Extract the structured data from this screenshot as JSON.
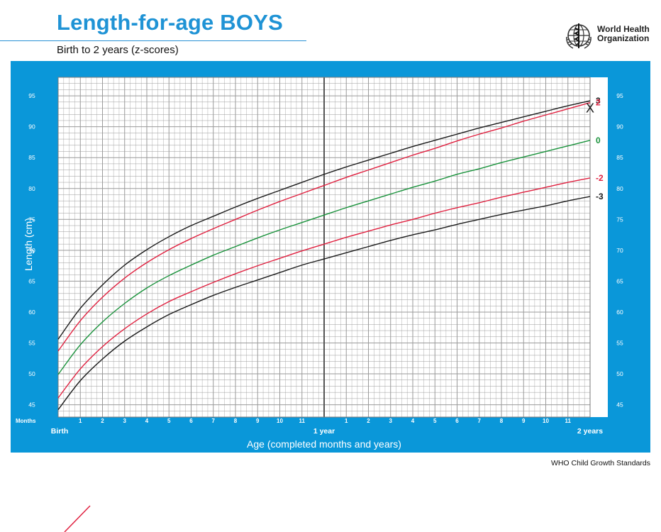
{
  "header": {
    "title": "Length-for-age BOYS",
    "subtitle": "Birth to 2 years (z-scores)",
    "org_line1": "World Health",
    "org_line2": "Organization",
    "logo_icon": "who-emblem-icon"
  },
  "footer": {
    "text": "WHO Child Growth Standards"
  },
  "colors": {
    "title": "#1f93d5",
    "frame": "#0a97d9",
    "grid": "#9a9a9a",
    "z_black": "#1a1a1a",
    "z_red": "#e0203f",
    "z_green": "#19923b"
  },
  "chart_data": {
    "type": "line",
    "title": "Length-for-age BOYS",
    "subtitle": "Birth to 2 years (z-scores)",
    "xlabel": "Age (completed months and years)",
    "ylabel": "Length (cm)",
    "x_unit_label": "Months",
    "xlim": [
      0,
      24
    ],
    "ylim": [
      43,
      98
    ],
    "y_ticks": [
      45,
      50,
      55,
      60,
      65,
      70,
      75,
      80,
      85,
      90,
      95
    ],
    "x_tick_labels": [
      "Birth",
      "1",
      "2",
      "3",
      "4",
      "5",
      "6",
      "7",
      "8",
      "9",
      "10",
      "11",
      "1 year",
      "1",
      "2",
      "3",
      "4",
      "5",
      "6",
      "7",
      "8",
      "9",
      "10",
      "11",
      "2 years"
    ],
    "grid": true,
    "x": [
      0,
      1,
      2,
      3,
      4,
      5,
      6,
      7,
      8,
      9,
      10,
      11,
      12,
      13,
      14,
      15,
      16,
      17,
      18,
      19,
      20,
      21,
      22,
      23,
      24
    ],
    "series": [
      {
        "name": "3",
        "color": "#1a1a1a",
        "values": [
          55.6,
          60.6,
          64.4,
          67.6,
          70.1,
          72.2,
          74.0,
          75.5,
          77.0,
          78.4,
          79.7,
          81.0,
          82.3,
          83.5,
          84.6,
          85.7,
          86.8,
          87.8,
          88.8,
          89.8,
          90.7,
          91.6,
          92.5,
          93.4,
          94.2
        ]
      },
      {
        "name": "2",
        "color": "#e0203f",
        "values": [
          53.7,
          58.6,
          62.4,
          65.5,
          68.0,
          70.1,
          71.9,
          73.5,
          75.0,
          76.5,
          77.9,
          79.2,
          80.5,
          81.8,
          83.0,
          84.2,
          85.4,
          86.5,
          87.7,
          88.8,
          89.8,
          90.9,
          91.9,
          92.9,
          93.9
        ]
      },
      {
        "name": "0",
        "color": "#19923b",
        "values": [
          49.9,
          54.7,
          58.4,
          61.4,
          63.9,
          65.9,
          67.6,
          69.2,
          70.6,
          72.0,
          73.3,
          74.5,
          75.7,
          76.9,
          78.0,
          79.1,
          80.2,
          81.2,
          82.3,
          83.2,
          84.2,
          85.1,
          86.0,
          86.9,
          87.8
        ]
      },
      {
        "name": "-2",
        "color": "#e0203f",
        "values": [
          46.1,
          50.8,
          54.4,
          57.3,
          59.7,
          61.7,
          63.3,
          64.8,
          66.2,
          67.5,
          68.7,
          69.9,
          71.0,
          72.1,
          73.1,
          74.1,
          75.0,
          76.0,
          76.9,
          77.7,
          78.6,
          79.4,
          80.2,
          81.0,
          81.7
        ]
      },
      {
        "name": "-3",
        "color": "#1a1a1a",
        "values": [
          44.2,
          48.9,
          52.4,
          55.3,
          57.6,
          59.6,
          61.2,
          62.7,
          64.0,
          65.2,
          66.4,
          67.6,
          68.6,
          69.6,
          70.6,
          71.6,
          72.5,
          73.3,
          74.2,
          75.0,
          75.8,
          76.5,
          77.2,
          78.0,
          78.7
        ]
      }
    ],
    "marker": {
      "symbol": "X",
      "x": 24,
      "y": 93,
      "color": "#1a1a1a"
    }
  }
}
